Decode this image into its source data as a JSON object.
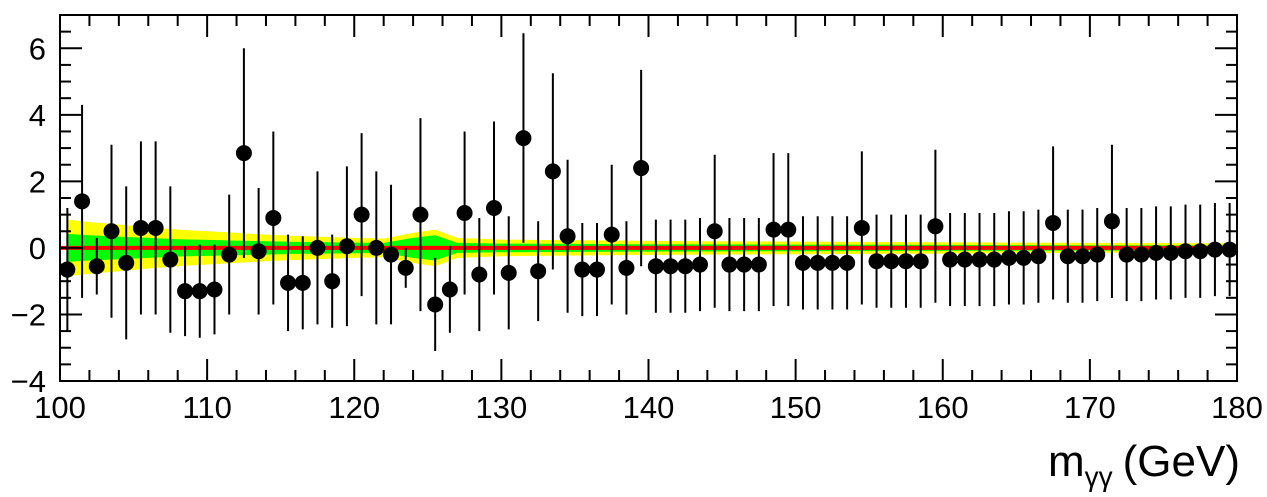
{
  "chart_data": {
    "type": "scatter",
    "title": "",
    "xlabel": "m",
    "xlabel_subscript": "γγ",
    "xlabel_unit": "(GeV)",
    "ylabel": "",
    "xlim": [
      100,
      180
    ],
    "ylim": [
      -4,
      7
    ],
    "x_ticks": [
      100,
      110,
      120,
      130,
      140,
      150,
      160,
      170,
      180
    ],
    "y_ticks": [
      -4,
      -2,
      0,
      2,
      4,
      6
    ],
    "grid": false,
    "legend": "none",
    "colors": {
      "points": "#000000",
      "band_2sigma": "#ffff00",
      "band_1sigma": "#00ff00",
      "fit_line": "#ff0000"
    },
    "bands": {
      "x": [
        100.5,
        102,
        104,
        106,
        108,
        110,
        112,
        114,
        116,
        118,
        120,
        122,
        124,
        125.5,
        127,
        130,
        135,
        140,
        150,
        160,
        170,
        180
      ],
      "sigma1": [
        0.42,
        0.38,
        0.34,
        0.3,
        0.26,
        0.24,
        0.22,
        0.2,
        0.18,
        0.17,
        0.16,
        0.15,
        0.3,
        0.38,
        0.15,
        0.13,
        0.12,
        0.11,
        0.1,
        0.09,
        0.08,
        0.08
      ],
      "sigma2": [
        0.85,
        0.78,
        0.7,
        0.62,
        0.55,
        0.5,
        0.45,
        0.4,
        0.36,
        0.33,
        0.3,
        0.28,
        0.45,
        0.55,
        0.3,
        0.25,
        0.23,
        0.21,
        0.19,
        0.17,
        0.15,
        0.14
      ]
    },
    "series": [
      {
        "x": [
          100.5,
          101.5,
          102.5,
          103.5,
          104.5,
          105.5,
          106.5,
          107.5,
          108.5,
          109.5,
          110.5,
          111.5,
          112.5,
          113.5,
          114.5,
          115.5,
          116.5,
          117.5,
          118.5,
          119.5,
          120.5,
          121.5,
          122.5,
          123.5,
          124.5,
          125.5,
          126.5,
          127.5,
          128.5,
          129.5,
          130.5,
          131.5,
          132.5,
          133.5,
          134.5,
          135.5,
          136.5,
          137.5,
          138.5,
          139.5,
          140.5,
          141.5,
          142.5,
          143.5,
          144.5,
          145.5,
          146.5,
          147.5,
          148.5,
          149.5,
          150.5,
          151.5,
          152.5,
          153.5,
          154.5,
          155.5,
          156.5,
          157.5,
          158.5,
          159.5,
          160.5,
          161.5,
          162.5,
          163.5,
          164.5,
          165.5,
          166.5,
          167.5,
          168.5,
          169.5,
          170.5,
          171.5,
          172.5,
          173.5,
          174.5,
          175.5,
          176.5,
          177.5,
          178.5,
          179.5
        ],
        "y": [
          -0.65,
          1.4,
          -0.55,
          0.5,
          -0.45,
          0.6,
          0.6,
          -0.35,
          -1.3,
          -1.3,
          -1.25,
          -0.2,
          2.85,
          -0.1,
          0.9,
          -1.05,
          -1.05,
          0.0,
          -1.0,
          0.05,
          1.0,
          0.0,
          -0.2,
          -0.6,
          1.0,
          -1.7,
          -1.25,
          1.05,
          -0.8,
          1.2,
          -0.75,
          3.3,
          -0.7,
          2.3,
          0.35,
          -0.65,
          -0.65,
          0.4,
          -0.6,
          2.4,
          -0.55,
          -0.55,
          -0.55,
          -0.5,
          0.5,
          -0.5,
          -0.5,
          -0.5,
          0.55,
          0.55,
          -0.45,
          -0.45,
          -0.45,
          -0.45,
          0.6,
          -0.4,
          -0.4,
          -0.4,
          -0.4,
          0.65,
          -0.35,
          -0.35,
          -0.35,
          -0.35,
          -0.3,
          -0.3,
          -0.25,
          0.75,
          -0.25,
          -0.25,
          -0.2,
          0.8,
          -0.2,
          -0.2,
          -0.15,
          -0.15,
          -0.1,
          -0.1,
          -0.05,
          -0.05
        ],
        "err": [
          1.85,
          2.9,
          0.85,
          2.6,
          2.3,
          2.6,
          2.6,
          2.2,
          1.35,
          1.4,
          1.35,
          1.8,
          3.15,
          1.9,
          2.6,
          1.45,
          1.4,
          2.3,
          1.4,
          2.4,
          2.45,
          2.3,
          2.1,
          0.6,
          2.9,
          1.4,
          1.3,
          2.45,
          1.7,
          2.6,
          1.7,
          3.15,
          1.5,
          2.95,
          2.3,
          1.4,
          1.4,
          2.1,
          1.4,
          2.95,
          1.4,
          1.4,
          1.4,
          1.4,
          2.3,
          1.4,
          1.4,
          1.4,
          2.3,
          2.3,
          1.4,
          1.4,
          1.4,
          1.4,
          2.3,
          1.4,
          1.4,
          1.4,
          1.4,
          2.3,
          1.4,
          1.4,
          1.4,
          1.4,
          1.4,
          1.4,
          1.4,
          2.3,
          1.4,
          1.4,
          1.4,
          2.3,
          1.4,
          1.4,
          1.4,
          1.4,
          1.4,
          1.4,
          1.4,
          1.4
        ]
      }
    ]
  }
}
